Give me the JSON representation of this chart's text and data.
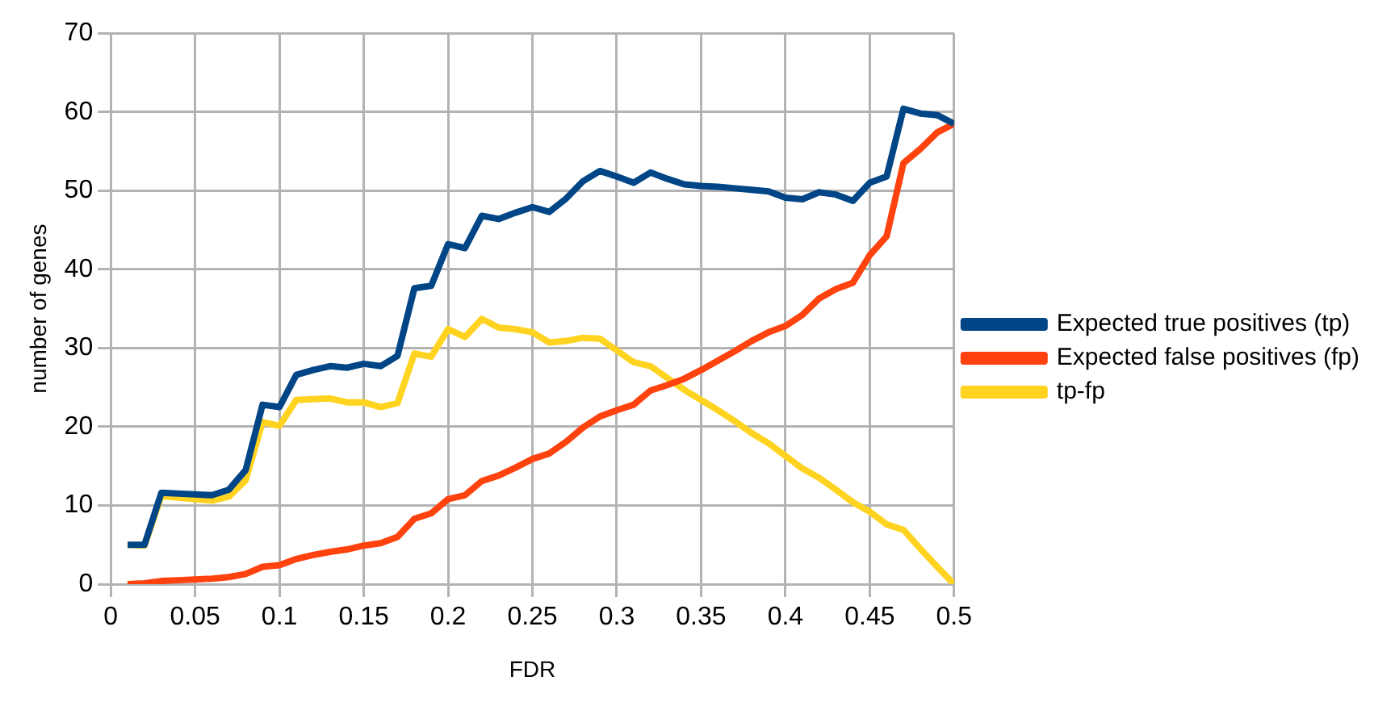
{
  "chart_data": {
    "type": "line",
    "xlabel": "FDR",
    "ylabel": "number of genes",
    "x": [
      0.01,
      0.02,
      0.03,
      0.04,
      0.05,
      0.06,
      0.07,
      0.08,
      0.09,
      0.1,
      0.11,
      0.12,
      0.13,
      0.14,
      0.15,
      0.16,
      0.17,
      0.18,
      0.19,
      0.2,
      0.21,
      0.22,
      0.23,
      0.24,
      0.25,
      0.26,
      0.27,
      0.28,
      0.29,
      0.3,
      0.31,
      0.32,
      0.33,
      0.34,
      0.35,
      0.36,
      0.37,
      0.38,
      0.39,
      0.4,
      0.41,
      0.42,
      0.43,
      0.44,
      0.45,
      0.46,
      0.47,
      0.48,
      0.49,
      0.5
    ],
    "series": [
      {
        "name": "Expected true positives (tp)",
        "color": "#004586",
        "values": [
          5,
          5,
          11.6,
          11.5,
          11.4,
          11.3,
          12,
          14.5,
          22.8,
          22.5,
          26.6,
          27.2,
          27.7,
          27.5,
          28,
          27.7,
          29,
          37.6,
          37.9,
          43.2,
          42.7,
          46.8,
          46.4,
          47.2,
          47.9,
          47.3,
          49,
          51.2,
          52.5,
          51.8,
          51,
          52.3,
          51.5,
          50.8,
          50.6,
          50.5,
          50.3,
          50.1,
          49.9,
          49.1,
          48.9,
          49.8,
          49.5,
          48.7,
          51,
          51.8,
          60.4,
          59.8,
          59.6,
          58.5
        ]
      },
      {
        "name": "Expected false positives (fp)",
        "color": "#ff420e",
        "values": [
          0,
          0.1,
          0.4,
          0.5,
          0.6,
          0.7,
          0.9,
          1.3,
          2.2,
          2.4,
          3.2,
          3.7,
          4.1,
          4.4,
          4.9,
          5.2,
          6,
          8.3,
          9,
          10.8,
          11.3,
          13.1,
          13.8,
          14.8,
          15.9,
          16.6,
          18.1,
          19.9,
          21.3,
          22.1,
          22.8,
          24.6,
          25.3,
          26.1,
          27.2,
          28.4,
          29.6,
          30.9,
          32,
          32.8,
          34.2,
          36.3,
          37.5,
          38.3,
          41.8,
          44.2,
          53.5,
          55.3,
          57.4,
          58.5
        ]
      },
      {
        "name": "tp-fp",
        "color": "#ffd320",
        "values": [
          5,
          4.9,
          11.2,
          11,
          10.8,
          10.6,
          11.1,
          13.2,
          20.6,
          20.1,
          23.4,
          23.5,
          23.6,
          23.1,
          23.1,
          22.5,
          23,
          29.3,
          28.9,
          32.4,
          31.4,
          33.7,
          32.6,
          32.4,
          32,
          30.7,
          30.9,
          31.3,
          31.2,
          29.7,
          28.2,
          27.7,
          26.2,
          24.7,
          23.4,
          22.1,
          20.7,
          19.2,
          17.9,
          16.3,
          14.7,
          13.5,
          12,
          10.4,
          9.2,
          7.6,
          6.9,
          4.5,
          2.2,
          0
        ]
      }
    ],
    "xlim": [
      0,
      0.5
    ],
    "xticks": [
      0,
      0.05,
      0.1,
      0.15,
      0.2,
      0.25,
      0.3,
      0.35,
      0.4,
      0.45,
      0.5
    ],
    "ylim": [
      0,
      70
    ],
    "yticks": [
      0,
      10,
      20,
      30,
      40,
      50,
      60,
      70
    ],
    "grid": true,
    "legend": "right",
    "marker": "none",
    "line_style": "solid"
  }
}
